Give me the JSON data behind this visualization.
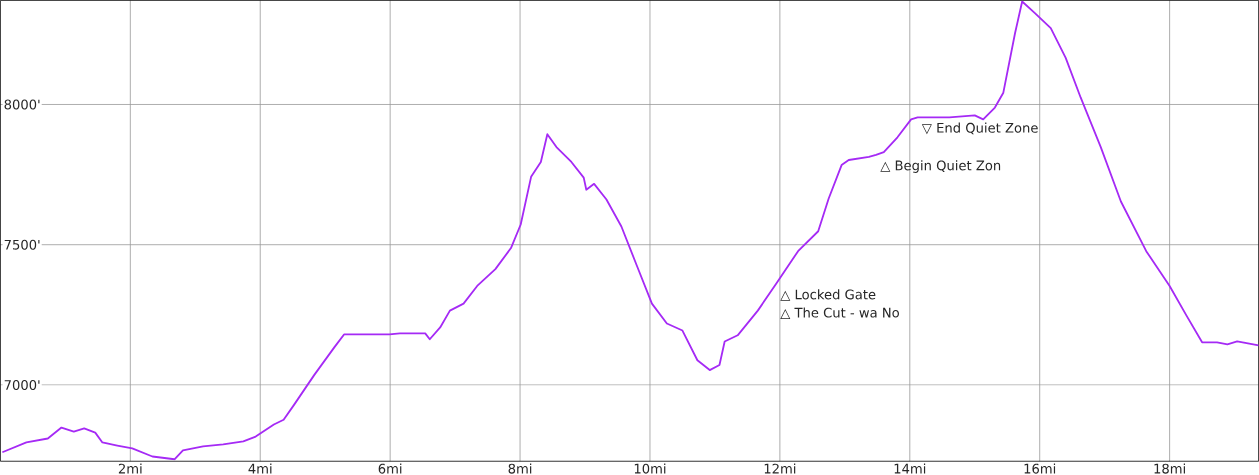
{
  "chart_data": {
    "type": "line",
    "x": [
      0.03,
      0.4,
      0.73,
      0.94,
      1.13,
      1.29,
      1.46,
      1.57,
      1.8,
      2.03,
      2.34,
      2.68,
      2.81,
      3.12,
      3.43,
      3.74,
      3.93,
      4.21,
      4.36,
      4.52,
      4.83,
      5.14,
      5.29,
      5.45,
      5.99,
      6.15,
      6.54,
      6.61,
      6.77,
      6.92,
      7.13,
      7.34,
      7.62,
      7.86,
      8.01,
      8.17,
      8.32,
      8.42,
      8.56,
      8.79,
      8.98,
      9.02,
      9.14,
      9.33,
      9.56,
      9.8,
      10.03,
      10.26,
      10.5,
      10.73,
      10.92,
      11.07,
      11.15,
      11.35,
      11.66,
      11.94,
      12.28,
      12.59,
      12.75,
      12.95,
      13.06,
      13.37,
      13.48,
      13.6,
      13.81,
      14.02,
      14.12,
      14.23,
      14.61,
      15.0,
      15.13,
      15.31,
      15.44,
      15.62,
      15.73,
      15.93,
      16.17,
      16.4,
      16.63,
      16.94,
      17.25,
      17.64,
      18.0,
      18.26,
      18.5,
      18.73,
      18.89,
      19.04,
      19.37
    ],
    "series": [
      {
        "color": "#a52af5",
        "values": [
          6760,
          6795,
          6809,
          6848,
          6834,
          6845,
          6830,
          6795,
          6784,
          6774,
          6745,
          6735,
          6767,
          6781,
          6788,
          6799,
          6816,
          6859,
          6876,
          6929,
          7035,
          7134,
          7180,
          7180,
          7180,
          7184,
          7184,
          7163,
          7205,
          7265,
          7290,
          7353,
          7413,
          7488,
          7572,
          7742,
          7795,
          7894,
          7848,
          7795,
          7739,
          7696,
          7717,
          7661,
          7565,
          7424,
          7290,
          7219,
          7194,
          7088,
          7053,
          7071,
          7155,
          7177,
          7265,
          7360,
          7477,
          7548,
          7664,
          7784,
          7802,
          7813,
          7820,
          7830,
          7883,
          7947,
          7954,
          7954,
          7954,
          7961,
          7947,
          7989,
          8042,
          8254,
          8367,
          8325,
          8272,
          8166,
          8025,
          7848,
          7654,
          7477,
          7353,
          7247,
          7152,
          7152,
          7145,
          7155,
          7141
        ]
      }
    ],
    "xlim": [
      0,
      19.37
    ],
    "ylim": [
      6728,
      8371
    ],
    "xticks": [
      {
        "value": 2,
        "label": "2mi"
      },
      {
        "value": 4,
        "label": "4mi"
      },
      {
        "value": 6,
        "label": "6mi"
      },
      {
        "value": 8,
        "label": "8mi"
      },
      {
        "value": 10,
        "label": "10mi"
      },
      {
        "value": 12,
        "label": "12mi"
      },
      {
        "value": 14,
        "label": "14mi"
      },
      {
        "value": 16,
        "label": "16mi"
      },
      {
        "value": 18,
        "label": "18mi"
      }
    ],
    "yticks": [
      {
        "value": 7000,
        "label": "7000'"
      },
      {
        "value": 7500,
        "label": "7500'"
      },
      {
        "value": 8000,
        "label": "8000'"
      }
    ],
    "grid": true,
    "marker": "none",
    "line_style": "solid",
    "annotations": [
      {
        "text": "△ Locked Gate",
        "x": 11.94,
        "y": 7360
      },
      {
        "text": "△ The Cut - wa No",
        "x": 11.94,
        "y": 7360
      },
      {
        "text": "△ Begin Quiet Zon",
        "x": 13.48,
        "y": 7820
      },
      {
        "text": "▽ End Quiet Zone",
        "x": 14.12,
        "y": 7954
      }
    ]
  }
}
